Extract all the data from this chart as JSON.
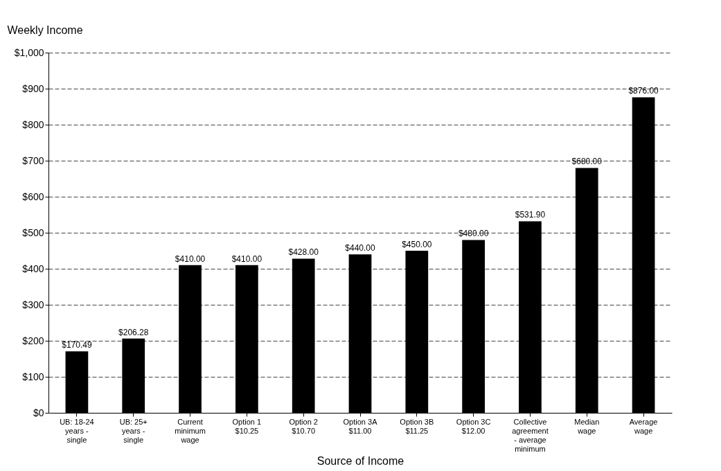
{
  "chart_data": {
    "type": "bar",
    "ylabel": "Weekly Income",
    "xlabel": "Source of Income",
    "categories": [
      "UB: 18-24\nyears -\nsingle",
      "UB: 25+\nyears -\nsingle",
      "Current\nminimum\nwage",
      "Option 1\n$10.25",
      "Option 2\n$10.70",
      "Option 3A\n$11.00",
      "Option 3B\n$11.25",
      "Option 3C\n$12.00",
      "Collective\nagreement\n- average\nminimum",
      "Median\nwage",
      "Average\nwage"
    ],
    "values": [
      170.49,
      206.28,
      410.0,
      410.0,
      428.0,
      440.0,
      450.0,
      480.0,
      531.9,
      680.0,
      876.0
    ],
    "color": "#000000",
    "value_labels": [
      "$170.49",
      "$206.28",
      "$410.00",
      "$410.00",
      "$428.00",
      "$440.00",
      "$450.00",
      "$480.00",
      "$531.90",
      "$680.00",
      "$876.00"
    ],
    "ylim": [
      0,
      1000
    ],
    "yticks": [
      {
        "value": 0,
        "label": "$0"
      },
      {
        "value": 100,
        "label": "$100"
      },
      {
        "value": 200,
        "label": "$200"
      },
      {
        "value": 300,
        "label": "$300"
      },
      {
        "value": 400,
        "label": "$400"
      },
      {
        "value": 500,
        "label": "$500"
      },
      {
        "value": 600,
        "label": "$600"
      },
      {
        "value": 700,
        "label": "$700"
      },
      {
        "value": 800,
        "label": "$800"
      },
      {
        "value": 900,
        "label": "$900"
      },
      {
        "value": 1000,
        "label": "$1,000"
      }
    ],
    "grid": "y"
  }
}
